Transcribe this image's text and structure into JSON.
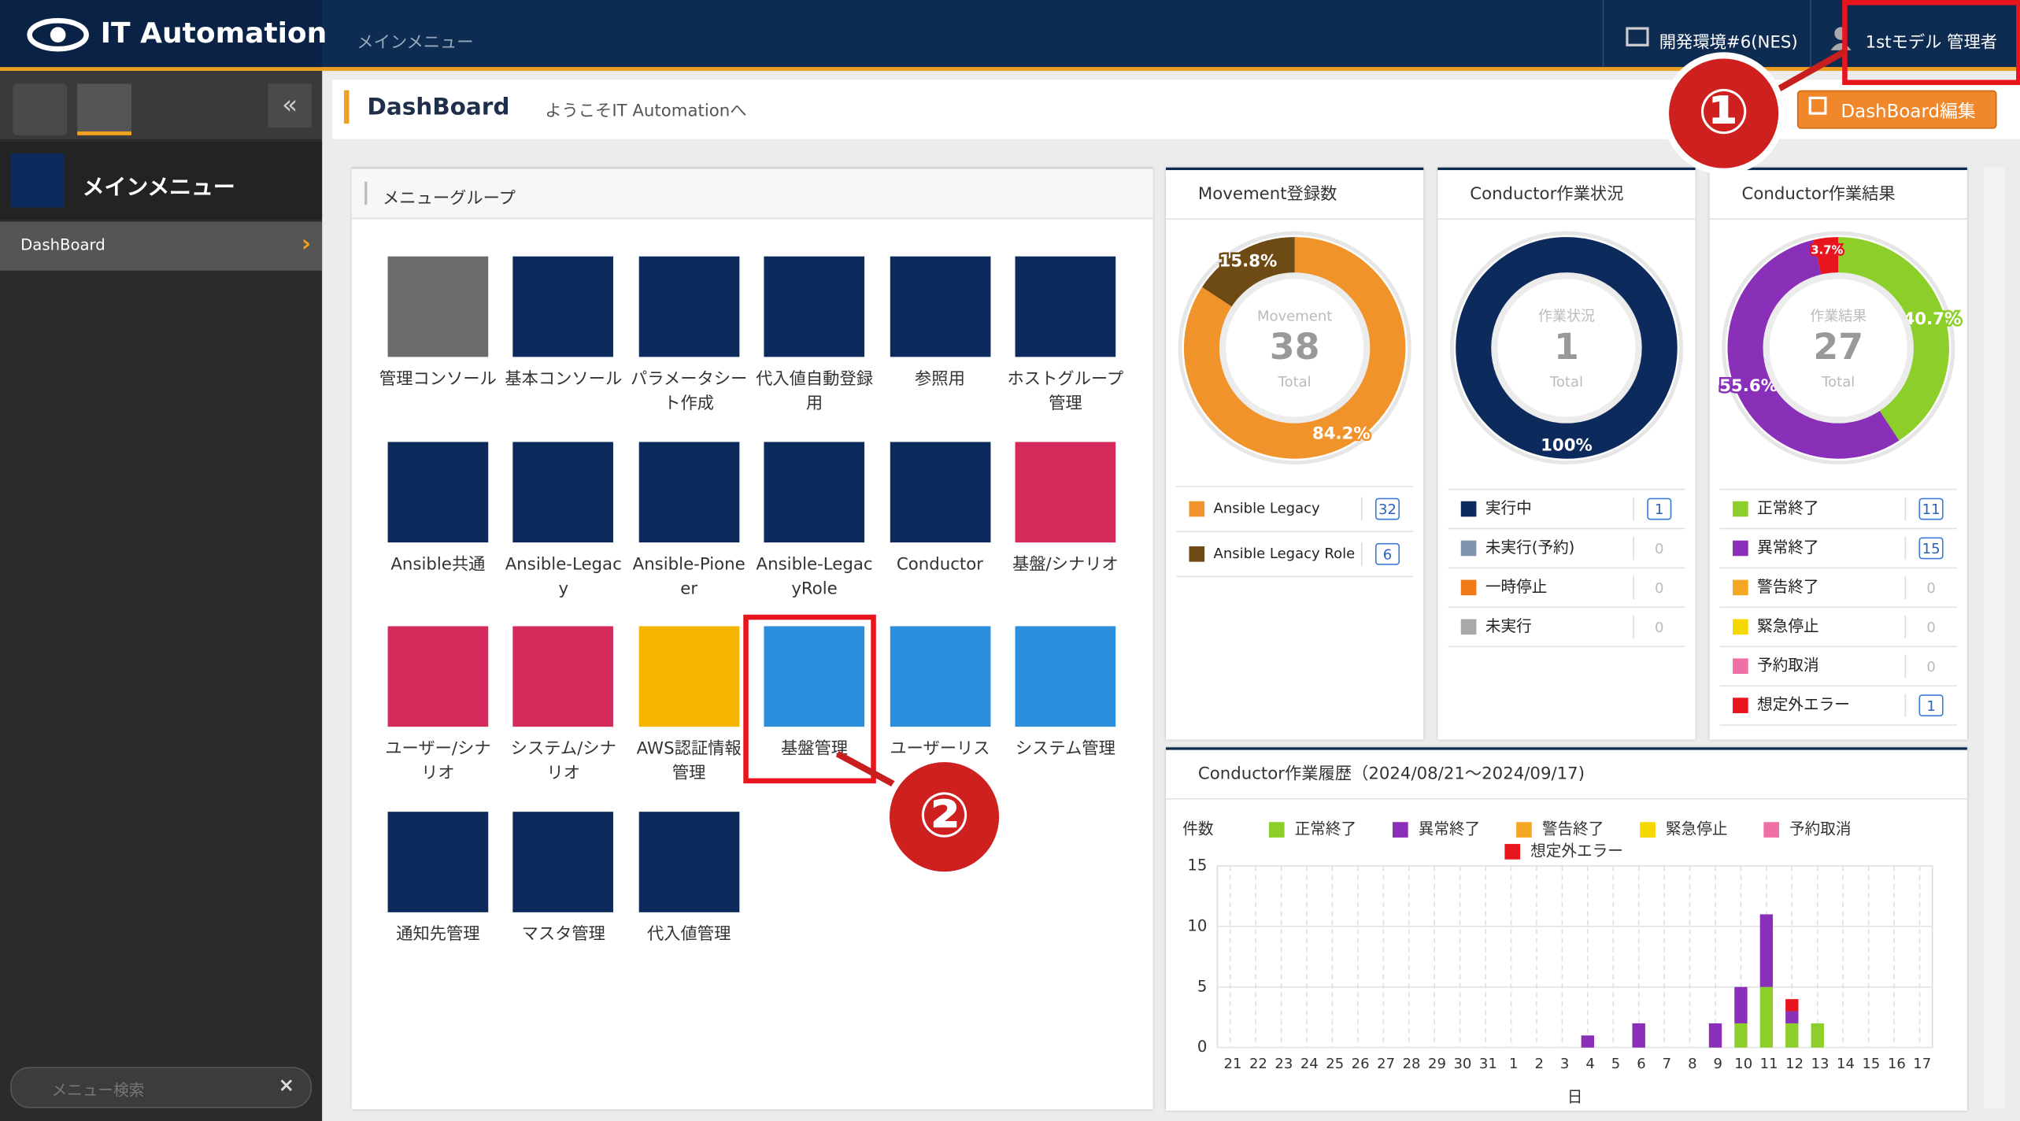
{
  "header": {
    "logo": "IT Automation",
    "breadcrumb": "メインメニュー",
    "environment": "開発環境#6(NES)",
    "user": "1stモデル 管理者"
  },
  "sidebar": {
    "title": "メインメニュー",
    "items": [
      "DashBoard"
    ],
    "search_placeholder": "メニュー検索"
  },
  "page": {
    "title": "DashBoard",
    "welcome": "ようこそIT Automationへ",
    "edit_button": "DashBoard編集"
  },
  "annotations": [
    "①",
    "②"
  ],
  "menu_group": {
    "title": "メニューグループ",
    "items": [
      {
        "label": "管理コンソール",
        "color": "#6b6b6b"
      },
      {
        "label": "基本コンソール",
        "color": "#0c2a5c"
      },
      {
        "label": "パラメータシート作成",
        "color": "#0c2a5c"
      },
      {
        "label": "代入値自動登録用",
        "color": "#0c2a5c"
      },
      {
        "label": "参照用",
        "color": "#0c2a5c"
      },
      {
        "label": "ホストグループ管理",
        "color": "#0c2a5c"
      },
      {
        "label": "Ansible共通",
        "color": "#0c2a5c"
      },
      {
        "label": "Ansible-Legacy",
        "color": "#0c2a5c"
      },
      {
        "label": "Ansible-Pioneer",
        "color": "#0c2a5c"
      },
      {
        "label": "Ansible-LegacyRole",
        "color": "#0c2a5c"
      },
      {
        "label": "Conductor",
        "color": "#0c2a5c"
      },
      {
        "label": "基盤/シナリオ",
        "color": "#d42a5c"
      },
      {
        "label": "ユーザー/シナリオ",
        "color": "#d42a5c"
      },
      {
        "label": "システム/シナリオ",
        "color": "#d42a5c"
      },
      {
        "label": "AWS認証情報管理",
        "color": "#f5b400"
      },
      {
        "label": "基盤管理",
        "color": "#2b8fde"
      },
      {
        "label": "ユーザーリス",
        "color": "#2b8fde"
      },
      {
        "label": "システム管理",
        "color": "#2b8fde"
      },
      {
        "label": "通知先管理",
        "color": "#0c2a5c"
      },
      {
        "label": "マスタ管理",
        "color": "#0c2a5c"
      },
      {
        "label": "代入値管理",
        "color": "#0c2a5c"
      }
    ]
  },
  "chart_data": [
    {
      "type": "donut",
      "title": "Movement登録数",
      "center_label": "Movement",
      "total": 38,
      "total_label": "Total",
      "categories": [
        "Ansible Legacy",
        "Ansible Legacy Role"
      ],
      "values": [
        32,
        6
      ],
      "colors": [
        "#f0932a",
        "#6e4a14"
      ],
      "percent_labels": [
        "84.2%",
        "15.8%"
      ]
    },
    {
      "type": "donut",
      "title": "Conductor作業状況",
      "center_label": "作業状況",
      "total": 1,
      "total_label": "Total",
      "categories": [
        "実行中",
        "未実行(予約)",
        "一時停止",
        "未実行"
      ],
      "values": [
        1,
        0,
        0,
        0
      ],
      "colors": [
        "#0c2a5c",
        "#7f93ad",
        "#f07a1a",
        "#a8a8a8"
      ],
      "percent_labels": [
        "100%",
        null,
        null,
        null
      ]
    },
    {
      "type": "donut",
      "title": "Conductor作業結果",
      "center_label": "作業結果",
      "total": 27,
      "total_label": "Total",
      "categories": [
        "正常終了",
        "異常終了",
        "警告終了",
        "緊急停止",
        "予約取消",
        "想定外エラー"
      ],
      "values": [
        11,
        15,
        0,
        0,
        0,
        1
      ],
      "colors": [
        "#8ccf2a",
        "#8a2fb8",
        "#f5a623",
        "#f5d800",
        "#f06fa6",
        "#e8141e"
      ],
      "percent_labels": [
        "40.7%",
        "55.6%",
        null,
        null,
        null,
        "3.7%"
      ]
    },
    {
      "type": "bar",
      "stacked": true,
      "title": "Conductor作業履歴（2024/08/21～2024/09/17)",
      "y_label": "件数",
      "x_label": "日",
      "categories": [
        "21",
        "22",
        "23",
        "24",
        "25",
        "26",
        "27",
        "28",
        "29",
        "30",
        "31",
        "1",
        "2",
        "3",
        "4",
        "5",
        "6",
        "7",
        "8",
        "9",
        "10",
        "11",
        "12",
        "13",
        "14",
        "15",
        "16",
        "17"
      ],
      "series": [
        {
          "name": "正常終了",
          "color": "#8ccf2a",
          "values": [
            0,
            0,
            0,
            0,
            0,
            0,
            0,
            0,
            0,
            0,
            0,
            0,
            0,
            0,
            0,
            0,
            0,
            0,
            0,
            0,
            2,
            5,
            2,
            2,
            0,
            0,
            0,
            0
          ]
        },
        {
          "name": "異常終了",
          "color": "#8a2fb8",
          "values": [
            0,
            0,
            0,
            0,
            0,
            0,
            0,
            0,
            0,
            0,
            0,
            0,
            0,
            0,
            1,
            0,
            2,
            0,
            0,
            2,
            3,
            6,
            1,
            0,
            0,
            0,
            0,
            0
          ]
        },
        {
          "name": "警告終了",
          "color": "#f5a623",
          "values": [
            0,
            0,
            0,
            0,
            0,
            0,
            0,
            0,
            0,
            0,
            0,
            0,
            0,
            0,
            0,
            0,
            0,
            0,
            0,
            0,
            0,
            0,
            0,
            0,
            0,
            0,
            0,
            0
          ]
        },
        {
          "name": "緊急停止",
          "color": "#f5d800",
          "values": [
            0,
            0,
            0,
            0,
            0,
            0,
            0,
            0,
            0,
            0,
            0,
            0,
            0,
            0,
            0,
            0,
            0,
            0,
            0,
            0,
            0,
            0,
            0,
            0,
            0,
            0,
            0,
            0
          ]
        },
        {
          "name": "予約取消",
          "color": "#f06fa6",
          "values": [
            0,
            0,
            0,
            0,
            0,
            0,
            0,
            0,
            0,
            0,
            0,
            0,
            0,
            0,
            0,
            0,
            0,
            0,
            0,
            0,
            0,
            0,
            0,
            0,
            0,
            0,
            0,
            0
          ]
        },
        {
          "name": "想定外エラー",
          "color": "#e8141e",
          "values": [
            0,
            0,
            0,
            0,
            0,
            0,
            0,
            0,
            0,
            0,
            0,
            0,
            0,
            0,
            0,
            0,
            0,
            0,
            0,
            0,
            0,
            0,
            1,
            0,
            0,
            0,
            0,
            0
          ]
        }
      ],
      "ylim": [
        0,
        15
      ],
      "yticks": [
        0,
        5,
        10,
        15
      ],
      "grid": true
    }
  ]
}
